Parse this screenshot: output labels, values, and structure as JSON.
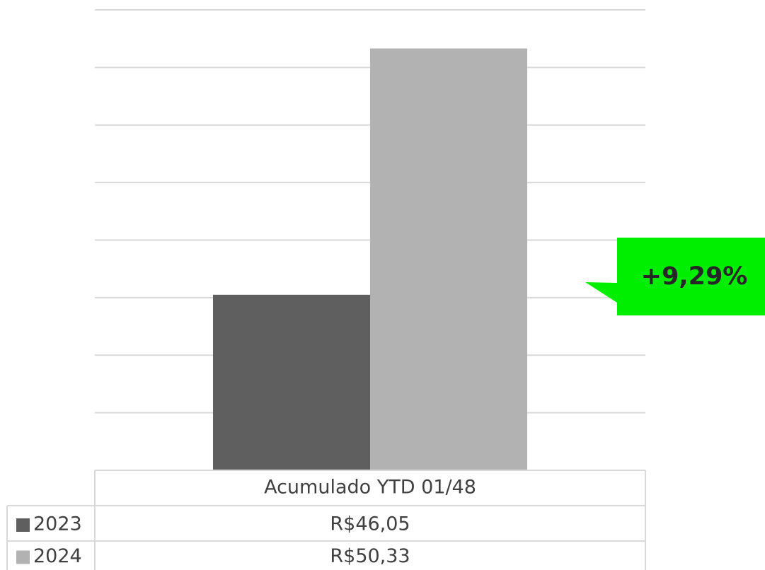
{
  "chart_data": {
    "type": "bar",
    "categories": [
      "Acumulado YTD 01/48"
    ],
    "series": [
      {
        "name": "2023",
        "color": "#5f5f5f",
        "values": [
          46.05
        ],
        "value_labels": [
          "R$46,05"
        ]
      },
      {
        "name": "2024",
        "color": "#b2b2b2",
        "values": [
          50.33
        ],
        "value_labels": [
          "R$50,33"
        ]
      }
    ],
    "ylim": [
      43,
      51
    ],
    "yticks": [
      43,
      44,
      45,
      46,
      47,
      48,
      49,
      50,
      51
    ],
    "grid": true,
    "annotation": "+9,29%",
    "annotation_color": "#00ee00"
  }
}
